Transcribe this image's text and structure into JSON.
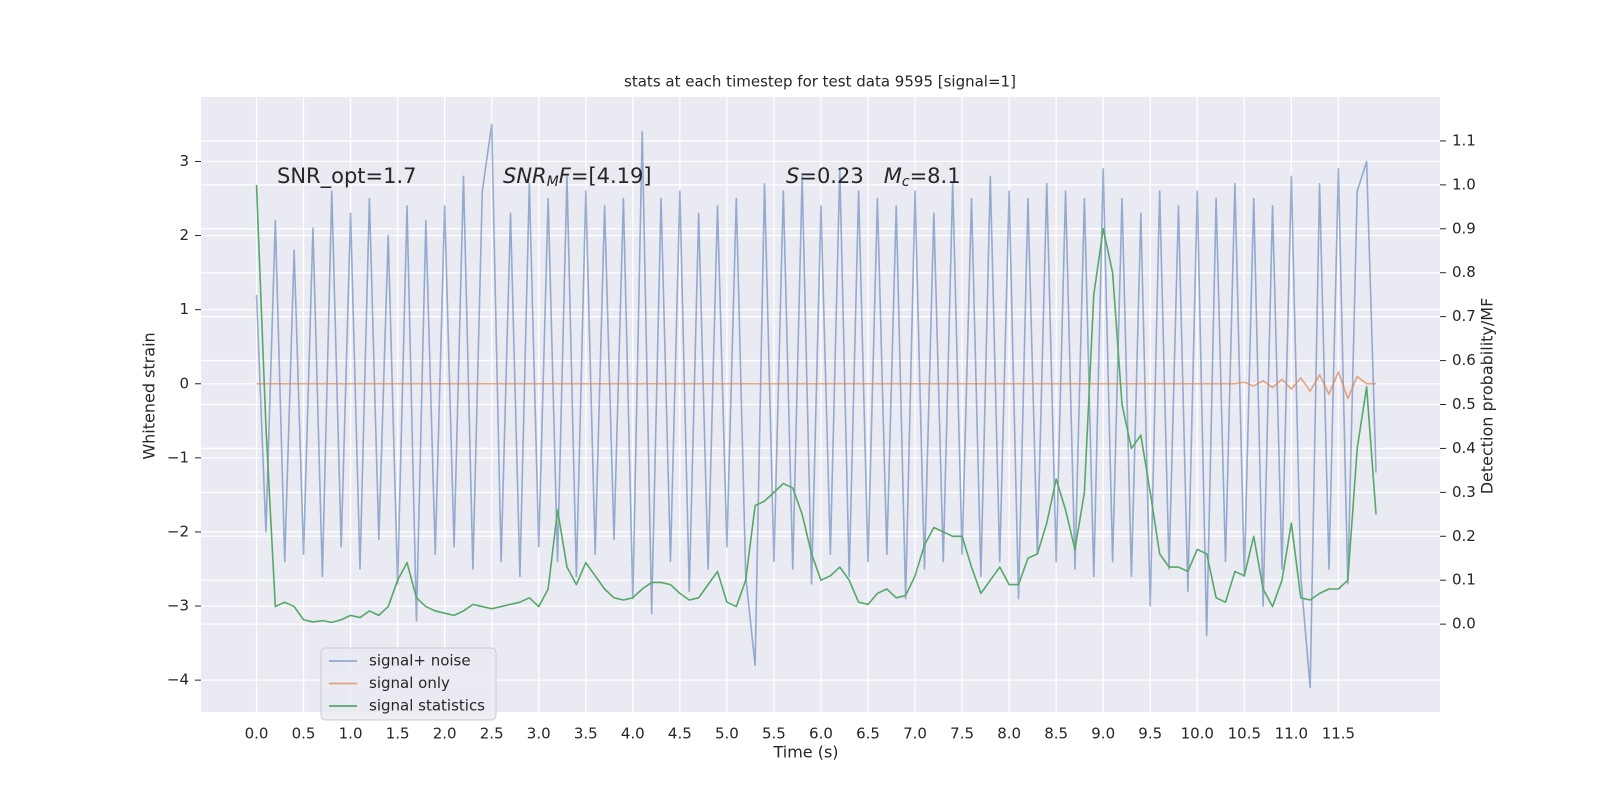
{
  "chart_data": {
    "type": "line",
    "title": "stats at each timestep for test data 9595 [signal=1]",
    "xlabel": "Time (s)",
    "ylabel": "Whitened strain",
    "y2label": "Detection probability/MF",
    "annotations": [
      {
        "parts": [
          {
            "text": "SNR_opt=1.7"
          }
        ]
      },
      {
        "parts": [
          {
            "text": "SNR",
            "italic": true
          },
          {
            "text": "M",
            "italic": true,
            "sub": true
          },
          {
            "text": "F",
            "italic": true
          },
          {
            "text": "=[4.19]"
          }
        ]
      },
      {
        "parts": [
          {
            "text": "S",
            "italic": true
          },
          {
            "text": "=0.23   "
          },
          {
            "text": "M",
            "italic": true
          },
          {
            "text": "c",
            "italic": true,
            "sub": true
          },
          {
            "text": "=8.1"
          }
        ]
      }
    ],
    "grid": true,
    "legend": "lower left",
    "xlim": [
      -0.59,
      12.58
    ],
    "ylim": [
      -4.43,
      3.87
    ],
    "y2lim": [
      -0.2,
      1.2
    ],
    "xticks": [
      {
        "value": 0,
        "label": "0.0"
      },
      {
        "value": 0.5,
        "label": "0.5"
      },
      {
        "value": 1,
        "label": "1.0"
      },
      {
        "value": 1.5,
        "label": "1.5"
      },
      {
        "value": 2,
        "label": "2.0"
      },
      {
        "value": 2.5,
        "label": "2.5"
      },
      {
        "value": 3,
        "label": "3.0"
      },
      {
        "value": 3.5,
        "label": "3.5"
      },
      {
        "value": 4,
        "label": "4.0"
      },
      {
        "value": 4.5,
        "label": "4.5"
      },
      {
        "value": 5,
        "label": "5.0"
      },
      {
        "value": 5.5,
        "label": "5.5"
      },
      {
        "value": 6,
        "label": "6.0"
      },
      {
        "value": 6.5,
        "label": "6.5"
      },
      {
        "value": 7,
        "label": "7.0"
      },
      {
        "value": 7.5,
        "label": "7.5"
      },
      {
        "value": 8,
        "label": "8.0"
      },
      {
        "value": 8.5,
        "label": "8.5"
      },
      {
        "value": 9,
        "label": "9.0"
      },
      {
        "value": 9.5,
        "label": "9.5"
      },
      {
        "value": 10,
        "label": "10.0"
      },
      {
        "value": 10.5,
        "label": "10.5"
      },
      {
        "value": 11,
        "label": "11.0"
      },
      {
        "value": 11.5,
        "label": "11.5"
      }
    ],
    "yticks": [
      {
        "value": -4,
        "label": "−4"
      },
      {
        "value": -3,
        "label": "−3"
      },
      {
        "value": -2,
        "label": "−2"
      },
      {
        "value": -1,
        "label": "−1"
      },
      0,
      1,
      2,
      3
    ],
    "y2ticks": [
      {
        "value": 0,
        "label": "0.0"
      },
      {
        "value": 0.1,
        "label": "0.1"
      },
      {
        "value": 0.2,
        "label": "0.2"
      },
      {
        "value": 0.3,
        "label": "0.3"
      },
      {
        "value": 0.4,
        "label": "0.4"
      },
      {
        "value": 0.5,
        "label": "0.5"
      },
      {
        "value": 0.6,
        "label": "0.6"
      },
      {
        "value": 0.7,
        "label": "0.7"
      },
      {
        "value": 0.8,
        "label": "0.8"
      },
      {
        "value": 0.9,
        "label": "0.9"
      },
      {
        "value": 1,
        "label": "1.0"
      },
      {
        "value": 1.1,
        "label": "1.1"
      }
    ],
    "x": [
      0,
      0.1,
      0.2,
      0.3,
      0.4,
      0.5,
      0.6,
      0.7,
      0.8,
      0.9,
      1,
      1.1,
      1.2,
      1.3,
      1.4,
      1.5,
      1.6,
      1.7,
      1.8,
      1.9,
      2,
      2.1,
      2.2,
      2.3,
      2.4,
      2.5,
      2.6,
      2.7,
      2.8,
      2.9,
      3,
      3.1,
      3.2,
      3.3,
      3.4,
      3.5,
      3.6,
      3.7,
      3.8,
      3.9,
      4,
      4.1,
      4.2,
      4.3,
      4.4,
      4.5,
      4.6,
      4.7,
      4.8,
      4.9,
      5,
      5.1,
      5.2,
      5.3,
      5.4,
      5.5,
      5.6,
      5.7,
      5.8,
      5.9,
      6,
      6.1,
      6.2,
      6.3,
      6.4,
      6.5,
      6.6,
      6.7,
      6.8,
      6.9,
      7,
      7.1,
      7.2,
      7.3,
      7.4,
      7.5,
      7.6,
      7.7,
      7.8,
      7.9,
      8,
      8.1,
      8.2,
      8.3,
      8.4,
      8.5,
      8.6,
      8.7,
      8.8,
      8.9,
      9,
      9.1,
      9.2,
      9.3,
      9.4,
      9.5,
      9.6,
      9.7,
      9.8,
      9.9,
      10,
      10.1,
      10.2,
      10.3,
      10.4,
      10.5,
      10.6,
      10.7,
      10.8,
      10.9,
      11,
      11.1,
      11.2,
      11.3,
      11.4,
      11.5,
      11.6,
      11.7,
      11.8,
      11.9
    ],
    "series": [
      {
        "name": "signal+ noise",
        "color": "#4c72b0",
        "alpha": 0.55,
        "values": [
          1.2,
          -2.0,
          2.2,
          -2.4,
          1.8,
          -2.3,
          2.1,
          -2.6,
          2.6,
          -2.2,
          2.3,
          -2.5,
          2.5,
          -2.1,
          2.0,
          -2.7,
          2.4,
          -3.2,
          2.2,
          -2.3,
          2.4,
          -2.2,
          2.8,
          -2.5,
          2.6,
          3.5,
          -2.4,
          2.3,
          -2.6,
          2.7,
          -2.2,
          2.5,
          -2.4,
          2.8,
          -2.6,
          2.6,
          -2.3,
          2.4,
          -2.1,
          2.5,
          -2.9,
          3.4,
          -3.1,
          2.5,
          -2.4,
          2.6,
          -2.8,
          2.3,
          -2.5,
          2.4,
          -2.2,
          2.5,
          -2.6,
          -3.8,
          2.7,
          -2.4,
          2.6,
          -2.5,
          2.8,
          -2.7,
          2.4,
          -2.3,
          2.9,
          -2.6,
          2.6,
          -2.4,
          2.5,
          -2.3,
          2.4,
          -2.9,
          2.6,
          -2.5,
          2.3,
          -2.4,
          2.7,
          -2.3,
          2.5,
          -2.6,
          2.8,
          -2.4,
          2.6,
          -2.9,
          2.5,
          -2.3,
          2.7,
          -2.4,
          2.6,
          -2.5,
          2.5,
          -2.6,
          2.9,
          -2.4,
          2.5,
          -2.6,
          2.3,
          -3.0,
          2.6,
          -2.5,
          2.4,
          -2.8,
          2.6,
          -3.4,
          2.5,
          -2.4,
          2.7,
          -2.6,
          2.5,
          -3.0,
          2.4,
          -2.5,
          2.8,
          -2.6,
          -4.1,
          2.7,
          -2.5,
          2.9,
          -2.7,
          2.6,
          3.0,
          -1.2
        ]
      },
      {
        "name": "signal only",
        "color": "#dd8452",
        "alpha": 0.7,
        "values": [
          0,
          0,
          0,
          0,
          0,
          0,
          0,
          0,
          0,
          0,
          0,
          0,
          0,
          0,
          0,
          0,
          0,
          0,
          0,
          0,
          0,
          0,
          0,
          0,
          0,
          0,
          0,
          0,
          0,
          0,
          0,
          0,
          0,
          0,
          0,
          0,
          0,
          0,
          0,
          0,
          0,
          0,
          0,
          0,
          0,
          0,
          0,
          0,
          0,
          0,
          0,
          0,
          0,
          0,
          0,
          0,
          0,
          0,
          0,
          0,
          0,
          0,
          0,
          0,
          0,
          0,
          0,
          0,
          0,
          0,
          0,
          0,
          0,
          0,
          0,
          0,
          0,
          0,
          0,
          0,
          0,
          0,
          0,
          0,
          0,
          0,
          0,
          0,
          0,
          0,
          0,
          0,
          0,
          0,
          0,
          0,
          0,
          0,
          0,
          0,
          0,
          0,
          0,
          0,
          0,
          0.02,
          -0.03,
          0.04,
          -0.05,
          0.06,
          -0.07,
          0.08,
          -0.1,
          0.12,
          -0.14,
          0.16,
          -0.2,
          0.1,
          0,
          0
        ]
      },
      {
        "name": "signal statistics",
        "color": "#55a868",
        "alpha": 1,
        "axis": "y2",
        "values": [
          1.0,
          0.45,
          0.04,
          0.05,
          0.04,
          0.01,
          0.005,
          0.008,
          0.004,
          0.01,
          0.02,
          0.015,
          0.03,
          0.02,
          0.04,
          0.1,
          0.14,
          0.06,
          0.04,
          0.03,
          0.025,
          0.02,
          0.03,
          0.045,
          0.04,
          0.035,
          0.04,
          0.045,
          0.05,
          0.06,
          0.04,
          0.08,
          0.26,
          0.13,
          0.09,
          0.14,
          0.11,
          0.08,
          0.06,
          0.055,
          0.06,
          0.08,
          0.095,
          0.095,
          0.09,
          0.07,
          0.055,
          0.06,
          0.09,
          0.12,
          0.05,
          0.04,
          0.1,
          0.27,
          0.28,
          0.3,
          0.32,
          0.31,
          0.25,
          0.16,
          0.1,
          0.11,
          0.13,
          0.1,
          0.05,
          0.045,
          0.07,
          0.08,
          0.06,
          0.065,
          0.11,
          0.18,
          0.22,
          0.21,
          0.2,
          0.2,
          0.13,
          0.07,
          0.1,
          0.13,
          0.09,
          0.09,
          0.15,
          0.16,
          0.23,
          0.33,
          0.26,
          0.17,
          0.3,
          0.75,
          0.9,
          0.8,
          0.5,
          0.4,
          0.43,
          0.3,
          0.16,
          0.13,
          0.13,
          0.12,
          0.17,
          0.16,
          0.06,
          0.05,
          0.12,
          0.11,
          0.2,
          0.08,
          0.04,
          0.1,
          0.23,
          0.06,
          0.055,
          0.07,
          0.08,
          0.08,
          0.1,
          0.4,
          0.54,
          0.25
        ]
      }
    ]
  }
}
